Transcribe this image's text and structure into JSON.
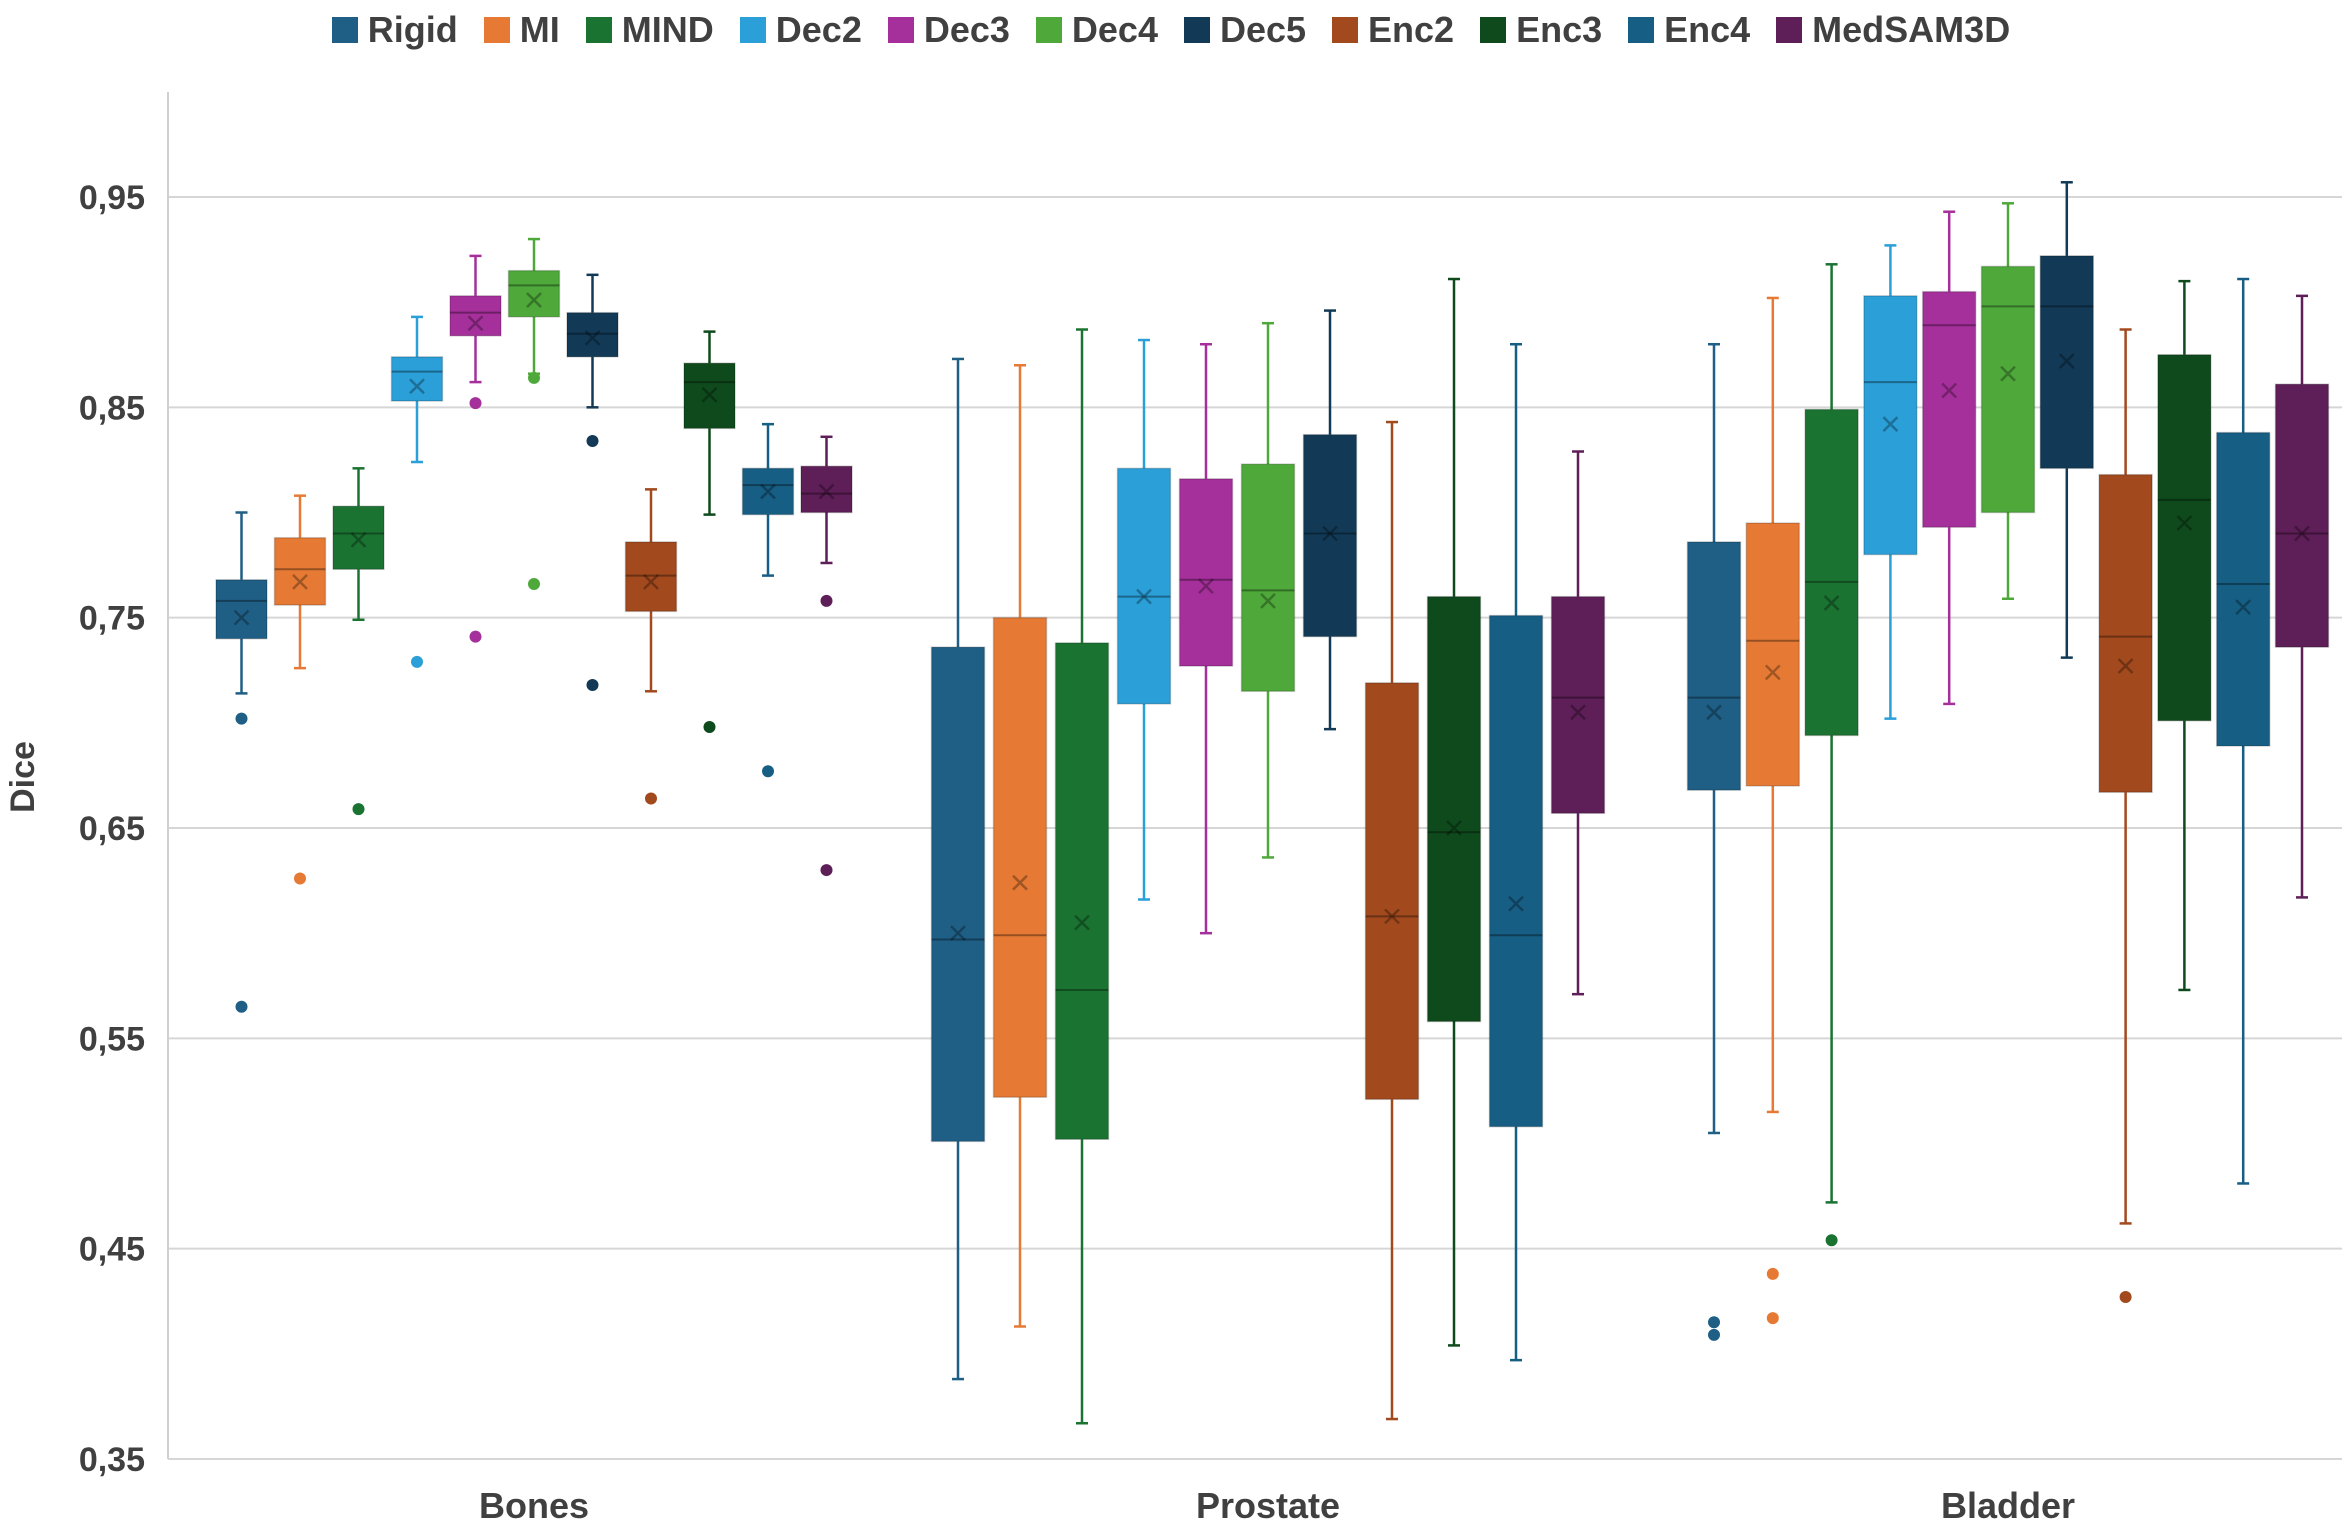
{
  "chart_data": {
    "type": "boxplot",
    "title": "",
    "xlabel": "",
    "ylabel": "Dice",
    "ylim": [
      0.35,
      1.0
    ],
    "yticks": [
      0.35,
      0.45,
      0.55,
      0.65,
      0.75,
      0.85,
      0.95
    ],
    "ytick_labels": [
      "0,35",
      "0,45",
      "0,55",
      "0,65",
      "0,75",
      "0,85",
      "0,95"
    ],
    "grid": true,
    "legend_position": "top",
    "categories": [
      "Bones",
      "Prostate",
      "Bladder"
    ],
    "series": [
      {
        "name": "Rigid",
        "color": "#1F5F86",
        "data": [
          {
            "whisker_low": 0.714,
            "q1": 0.74,
            "median": 0.758,
            "q3": 0.768,
            "whisker_high": 0.8,
            "mean": 0.75,
            "outliers": [
              0.702,
              0.565
            ]
          },
          {
            "whisker_low": 0.388,
            "q1": 0.501,
            "median": 0.597,
            "q3": 0.736,
            "whisker_high": 0.873,
            "mean": 0.6,
            "outliers": []
          },
          {
            "whisker_low": 0.505,
            "q1": 0.668,
            "median": 0.712,
            "q3": 0.786,
            "whisker_high": 0.88,
            "mean": 0.705,
            "outliers": [
              0.415,
              0.409
            ]
          }
        ]
      },
      {
        "name": "MI",
        "color": "#E67A34",
        "data": [
          {
            "whisker_low": 0.726,
            "q1": 0.756,
            "median": 0.773,
            "q3": 0.788,
            "whisker_high": 0.808,
            "mean": 0.767,
            "outliers": [
              0.626
            ]
          },
          {
            "whisker_low": 0.413,
            "q1": 0.522,
            "median": 0.599,
            "q3": 0.75,
            "whisker_high": 0.87,
            "mean": 0.624,
            "outliers": []
          },
          {
            "whisker_low": 0.515,
            "q1": 0.67,
            "median": 0.739,
            "q3": 0.795,
            "whisker_high": 0.902,
            "mean": 0.724,
            "outliers": [
              0.438,
              0.417
            ]
          }
        ]
      },
      {
        "name": "MIND",
        "color": "#1B7332",
        "data": [
          {
            "whisker_low": 0.749,
            "q1": 0.773,
            "median": 0.79,
            "q3": 0.803,
            "whisker_high": 0.821,
            "mean": 0.787,
            "outliers": [
              0.659
            ]
          },
          {
            "whisker_low": 0.367,
            "q1": 0.502,
            "median": 0.573,
            "q3": 0.738,
            "whisker_high": 0.887,
            "mean": 0.605,
            "outliers": []
          },
          {
            "whisker_low": 0.472,
            "q1": 0.694,
            "median": 0.767,
            "q3": 0.849,
            "whisker_high": 0.918,
            "mean": 0.757,
            "outliers": [
              0.454
            ]
          }
        ]
      },
      {
        "name": "Dec2",
        "color": "#2A9FD8",
        "data": [
          {
            "whisker_low": 0.824,
            "q1": 0.853,
            "median": 0.867,
            "q3": 0.874,
            "whisker_high": 0.893,
            "mean": 0.86,
            "outliers": [
              0.729
            ]
          },
          {
            "whisker_low": 0.616,
            "q1": 0.709,
            "median": 0.76,
            "q3": 0.821,
            "whisker_high": 0.882,
            "mean": 0.76,
            "outliers": []
          },
          {
            "whisker_low": 0.702,
            "q1": 0.78,
            "median": 0.862,
            "q3": 0.903,
            "whisker_high": 0.927,
            "mean": 0.842,
            "outliers": []
          }
        ]
      },
      {
        "name": "Dec3",
        "color": "#A6309B",
        "data": [
          {
            "whisker_low": 0.862,
            "q1": 0.884,
            "median": 0.895,
            "q3": 0.903,
            "whisker_high": 0.922,
            "mean": 0.89,
            "outliers": [
              0.852,
              0.741
            ]
          },
          {
            "whisker_low": 0.6,
            "q1": 0.727,
            "median": 0.768,
            "q3": 0.816,
            "whisker_high": 0.88,
            "mean": 0.765,
            "outliers": []
          },
          {
            "whisker_low": 0.709,
            "q1": 0.793,
            "median": 0.889,
            "q3": 0.905,
            "whisker_high": 0.943,
            "mean": 0.858,
            "outliers": []
          }
        ]
      },
      {
        "name": "Dec4",
        "color": "#4EA93A",
        "data": [
          {
            "whisker_low": 0.866,
            "q1": 0.893,
            "median": 0.908,
            "q3": 0.915,
            "whisker_high": 0.93,
            "mean": 0.901,
            "outliers": [
              0.864,
              0.766
            ]
          },
          {
            "whisker_low": 0.636,
            "q1": 0.715,
            "median": 0.763,
            "q3": 0.823,
            "whisker_high": 0.89,
            "mean": 0.758,
            "outliers": []
          },
          {
            "whisker_low": 0.759,
            "q1": 0.8,
            "median": 0.898,
            "q3": 0.917,
            "whisker_high": 0.947,
            "mean": 0.866,
            "outliers": []
          }
        ]
      },
      {
        "name": "Dec5",
        "color": "#123A57",
        "data": [
          {
            "whisker_low": 0.85,
            "q1": 0.874,
            "median": 0.885,
            "q3": 0.895,
            "whisker_high": 0.913,
            "mean": 0.883,
            "outliers": [
              0.834,
              0.718
            ]
          },
          {
            "whisker_low": 0.697,
            "q1": 0.741,
            "median": 0.79,
            "q3": 0.837,
            "whisker_high": 0.896,
            "mean": 0.79,
            "outliers": []
          },
          {
            "whisker_low": 0.731,
            "q1": 0.821,
            "median": 0.898,
            "q3": 0.922,
            "whisker_high": 0.957,
            "mean": 0.872,
            "outliers": []
          }
        ]
      },
      {
        "name": "Enc2",
        "color": "#A24A1E",
        "data": [
          {
            "whisker_low": 0.715,
            "q1": 0.753,
            "median": 0.77,
            "q3": 0.786,
            "whisker_high": 0.811,
            "mean": 0.767,
            "outliers": [
              0.664
            ]
          },
          {
            "whisker_low": 0.369,
            "q1": 0.521,
            "median": 0.608,
            "q3": 0.719,
            "whisker_high": 0.843,
            "mean": 0.608,
            "outliers": []
          },
          {
            "whisker_low": 0.462,
            "q1": 0.667,
            "median": 0.741,
            "q3": 0.818,
            "whisker_high": 0.887,
            "mean": 0.727,
            "outliers": [
              0.427
            ]
          }
        ]
      },
      {
        "name": "Enc3",
        "color": "#0F4A1C",
        "data": [
          {
            "whisker_low": 0.799,
            "q1": 0.84,
            "median": 0.862,
            "q3": 0.871,
            "whisker_high": 0.886,
            "mean": 0.856,
            "outliers": [
              0.698
            ]
          },
          {
            "whisker_low": 0.404,
            "q1": 0.558,
            "median": 0.648,
            "q3": 0.76,
            "whisker_high": 0.911,
            "mean": 0.65,
            "outliers": []
          },
          {
            "whisker_low": 0.573,
            "q1": 0.701,
            "median": 0.806,
            "q3": 0.875,
            "whisker_high": 0.91,
            "mean": 0.795,
            "outliers": []
          }
        ]
      },
      {
        "name": "Enc4",
        "color": "#175E84",
        "data": [
          {
            "whisker_low": 0.77,
            "q1": 0.799,
            "median": 0.813,
            "q3": 0.821,
            "whisker_high": 0.842,
            "mean": 0.81,
            "outliers": [
              0.677
            ]
          },
          {
            "whisker_low": 0.397,
            "q1": 0.508,
            "median": 0.599,
            "q3": 0.751,
            "whisker_high": 0.88,
            "mean": 0.614,
            "outliers": []
          },
          {
            "whisker_low": 0.481,
            "q1": 0.689,
            "median": 0.766,
            "q3": 0.838,
            "whisker_high": 0.911,
            "mean": 0.755,
            "outliers": []
          }
        ]
      },
      {
        "name": "MedSAM3D",
        "color": "#5E1E57",
        "data": [
          {
            "whisker_low": 0.776,
            "q1": 0.8,
            "median": 0.809,
            "q3": 0.822,
            "whisker_high": 0.836,
            "mean": 0.81,
            "outliers": [
              0.758,
              0.63
            ]
          },
          {
            "whisker_low": 0.571,
            "q1": 0.657,
            "median": 0.712,
            "q3": 0.76,
            "whisker_high": 0.829,
            "mean": 0.705,
            "outliers": []
          },
          {
            "whisker_low": 0.617,
            "q1": 0.736,
            "median": 0.79,
            "q3": 0.861,
            "whisker_high": 0.903,
            "mean": 0.79,
            "outliers": []
          }
        ]
      }
    ]
  }
}
